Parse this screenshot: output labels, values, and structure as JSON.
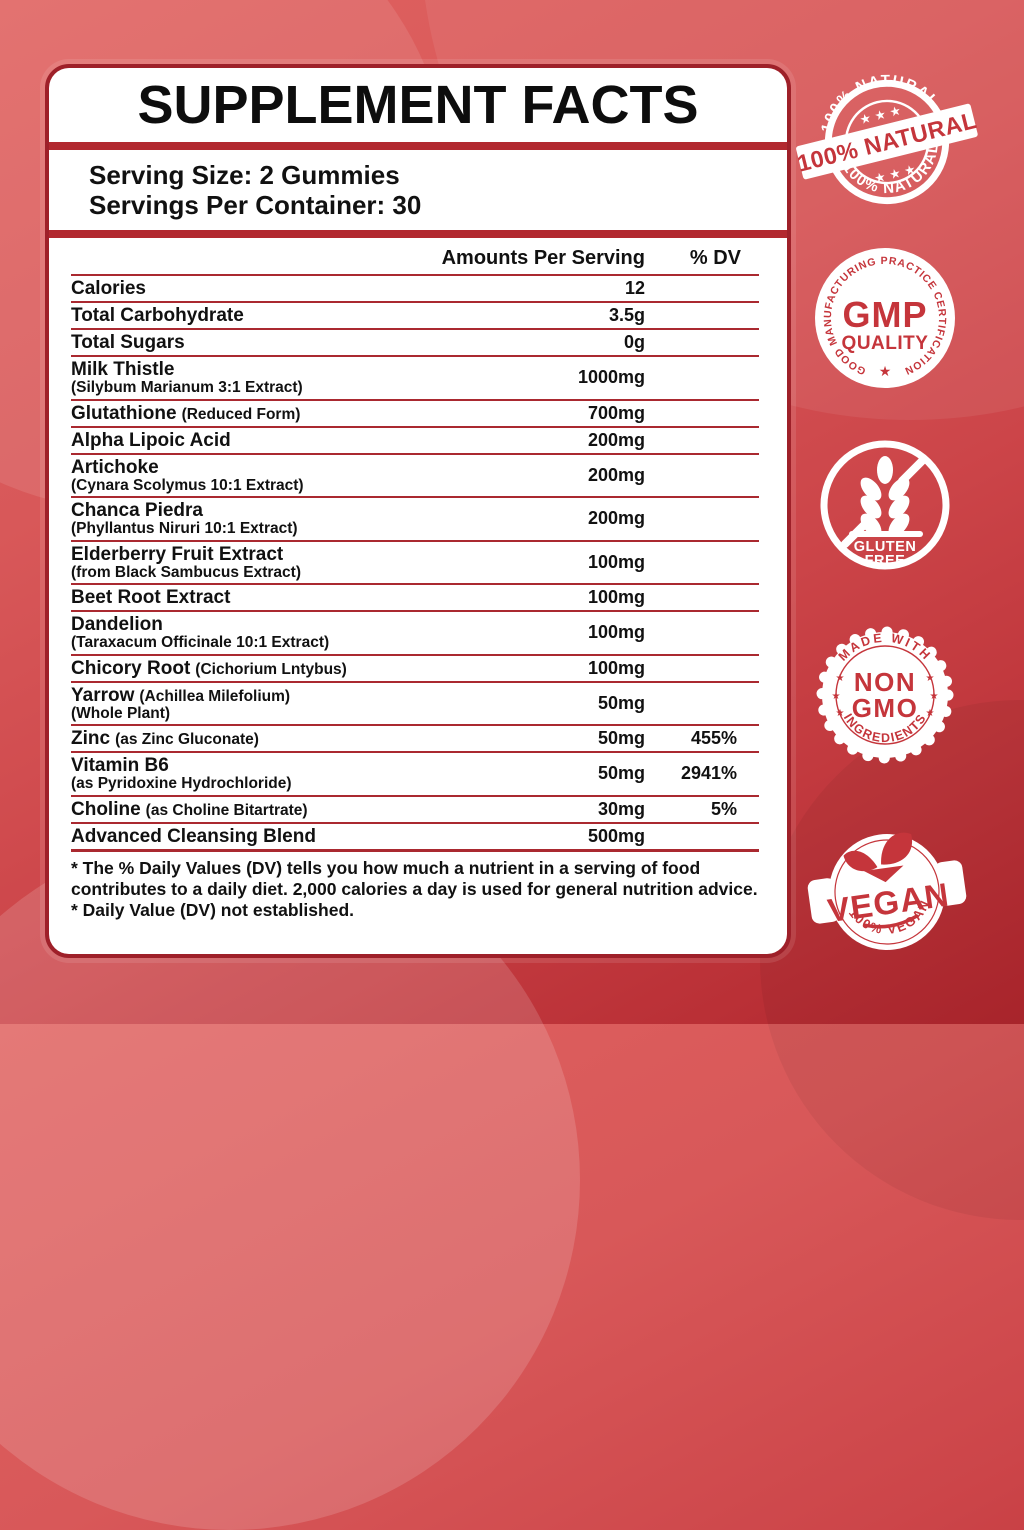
{
  "panel": {
    "title": "SUPPLEMENT FACTS",
    "serving_size": "Serving Size: 2 Gummies",
    "servings_per_container": "Servings Per Container: 30",
    "table": {
      "header": {
        "amounts": "Amounts Per Serving",
        "dv": "% DV"
      },
      "rows": [
        {
          "name": "Calories",
          "inline": "",
          "line2": "",
          "amount": "12",
          "dv": ""
        },
        {
          "name": "Total Carbohydrate",
          "inline": "",
          "line2": "",
          "amount": "3.5g",
          "dv": ""
        },
        {
          "name": "Total Sugars",
          "inline": "",
          "line2": "",
          "amount": "0g",
          "dv": ""
        },
        {
          "name": "Milk Thistle",
          "inline": "",
          "line2": "(Silybum Marianum 3:1 Extract)",
          "amount": "1000mg",
          "dv": ""
        },
        {
          "name": "Glutathione",
          "inline": "(Reduced Form)",
          "line2": "",
          "amount": "700mg",
          "dv": ""
        },
        {
          "name": "Alpha Lipoic Acid",
          "inline": "",
          "line2": "",
          "amount": "200mg",
          "dv": ""
        },
        {
          "name": "Artichoke",
          "inline": "",
          "line2": "(Cynara Scolymus 10:1 Extract)",
          "amount": "200mg",
          "dv": ""
        },
        {
          "name": "Chanca Piedra",
          "inline": "",
          "line2": "(Phyllantus Niruri 10:1 Extract)",
          "amount": "200mg",
          "dv": ""
        },
        {
          "name": "Elderberry Fruit Extract",
          "inline": "",
          "line2": "(from Black Sambucus Extract)",
          "amount": "100mg",
          "dv": ""
        },
        {
          "name": "Beet Root Extract",
          "inline": "",
          "line2": "",
          "amount": "100mg",
          "dv": ""
        },
        {
          "name": "Dandelion",
          "inline": "",
          "line2": "(Taraxacum Officinale 10:1 Extract)",
          "amount": "100mg",
          "dv": ""
        },
        {
          "name": "Chicory Root",
          "inline": "(Cichorium Lntybus)",
          "line2": "",
          "amount": "100mg",
          "dv": ""
        },
        {
          "name": "Yarrow",
          "inline": "(Achillea Milefolium)",
          "line2": "(Whole Plant)",
          "amount": "50mg",
          "dv": ""
        },
        {
          "name": "Zinc",
          "inline": "(as Zinc Gluconate)",
          "line2": "",
          "amount": "50mg",
          "dv": "455%"
        },
        {
          "name": "Vitamin B6",
          "inline": "",
          "line2": "(as Pyridoxine Hydrochloride)",
          "amount": "50mg",
          "dv": "2941%"
        },
        {
          "name": "Choline",
          "inline": "(as Choline Bitartrate)",
          "line2": "",
          "amount": "30mg",
          "dv": "5%"
        },
        {
          "name": "Advanced Cleansing Blend",
          "inline": "",
          "line2": "",
          "amount": "500mg",
          "dv": ""
        }
      ],
      "footnotes": [
        "* The % Daily Values (DV) tells you how much a nutrient in a serving of food contributes to a daily diet. 2,000 calories a day is used for general nutrition advice.",
        "* Daily Value (DV) not established."
      ]
    }
  },
  "badges": {
    "natural": {
      "arc_top": "100% NATURAL",
      "arc_bottom": "100% NATURAL",
      "banner": "100% NATURAL",
      "stars_top": "★ ★ ★",
      "stars_bottom": "★ ★ ★"
    },
    "gmp": {
      "arc": "GOOD MANUFACTURING PRACTICE CERTIFICATION",
      "center_line1": "GMP",
      "center_line2": "QUALITY",
      "star": "★"
    },
    "gluten": {
      "line1": "GLUTEN",
      "line2": "FREE"
    },
    "non_gmo": {
      "arc_top": "MADE WITH",
      "arc_bottom": "INGREDIENTS",
      "center_line1": "NON",
      "center_line2": "GMO",
      "stars_left": "★",
      "stars_right": "★"
    },
    "vegan": {
      "word": "VEGAN",
      "arc_bottom": "100% VEGAN"
    }
  },
  "colors": {
    "background_top": "#e06260",
    "background_bottom": "#b2272e",
    "panel_border": "#9e2029",
    "divider_red": "#aa2930",
    "badge_red": "#c5353b",
    "text_black": "#111111",
    "white": "#ffffff"
  }
}
